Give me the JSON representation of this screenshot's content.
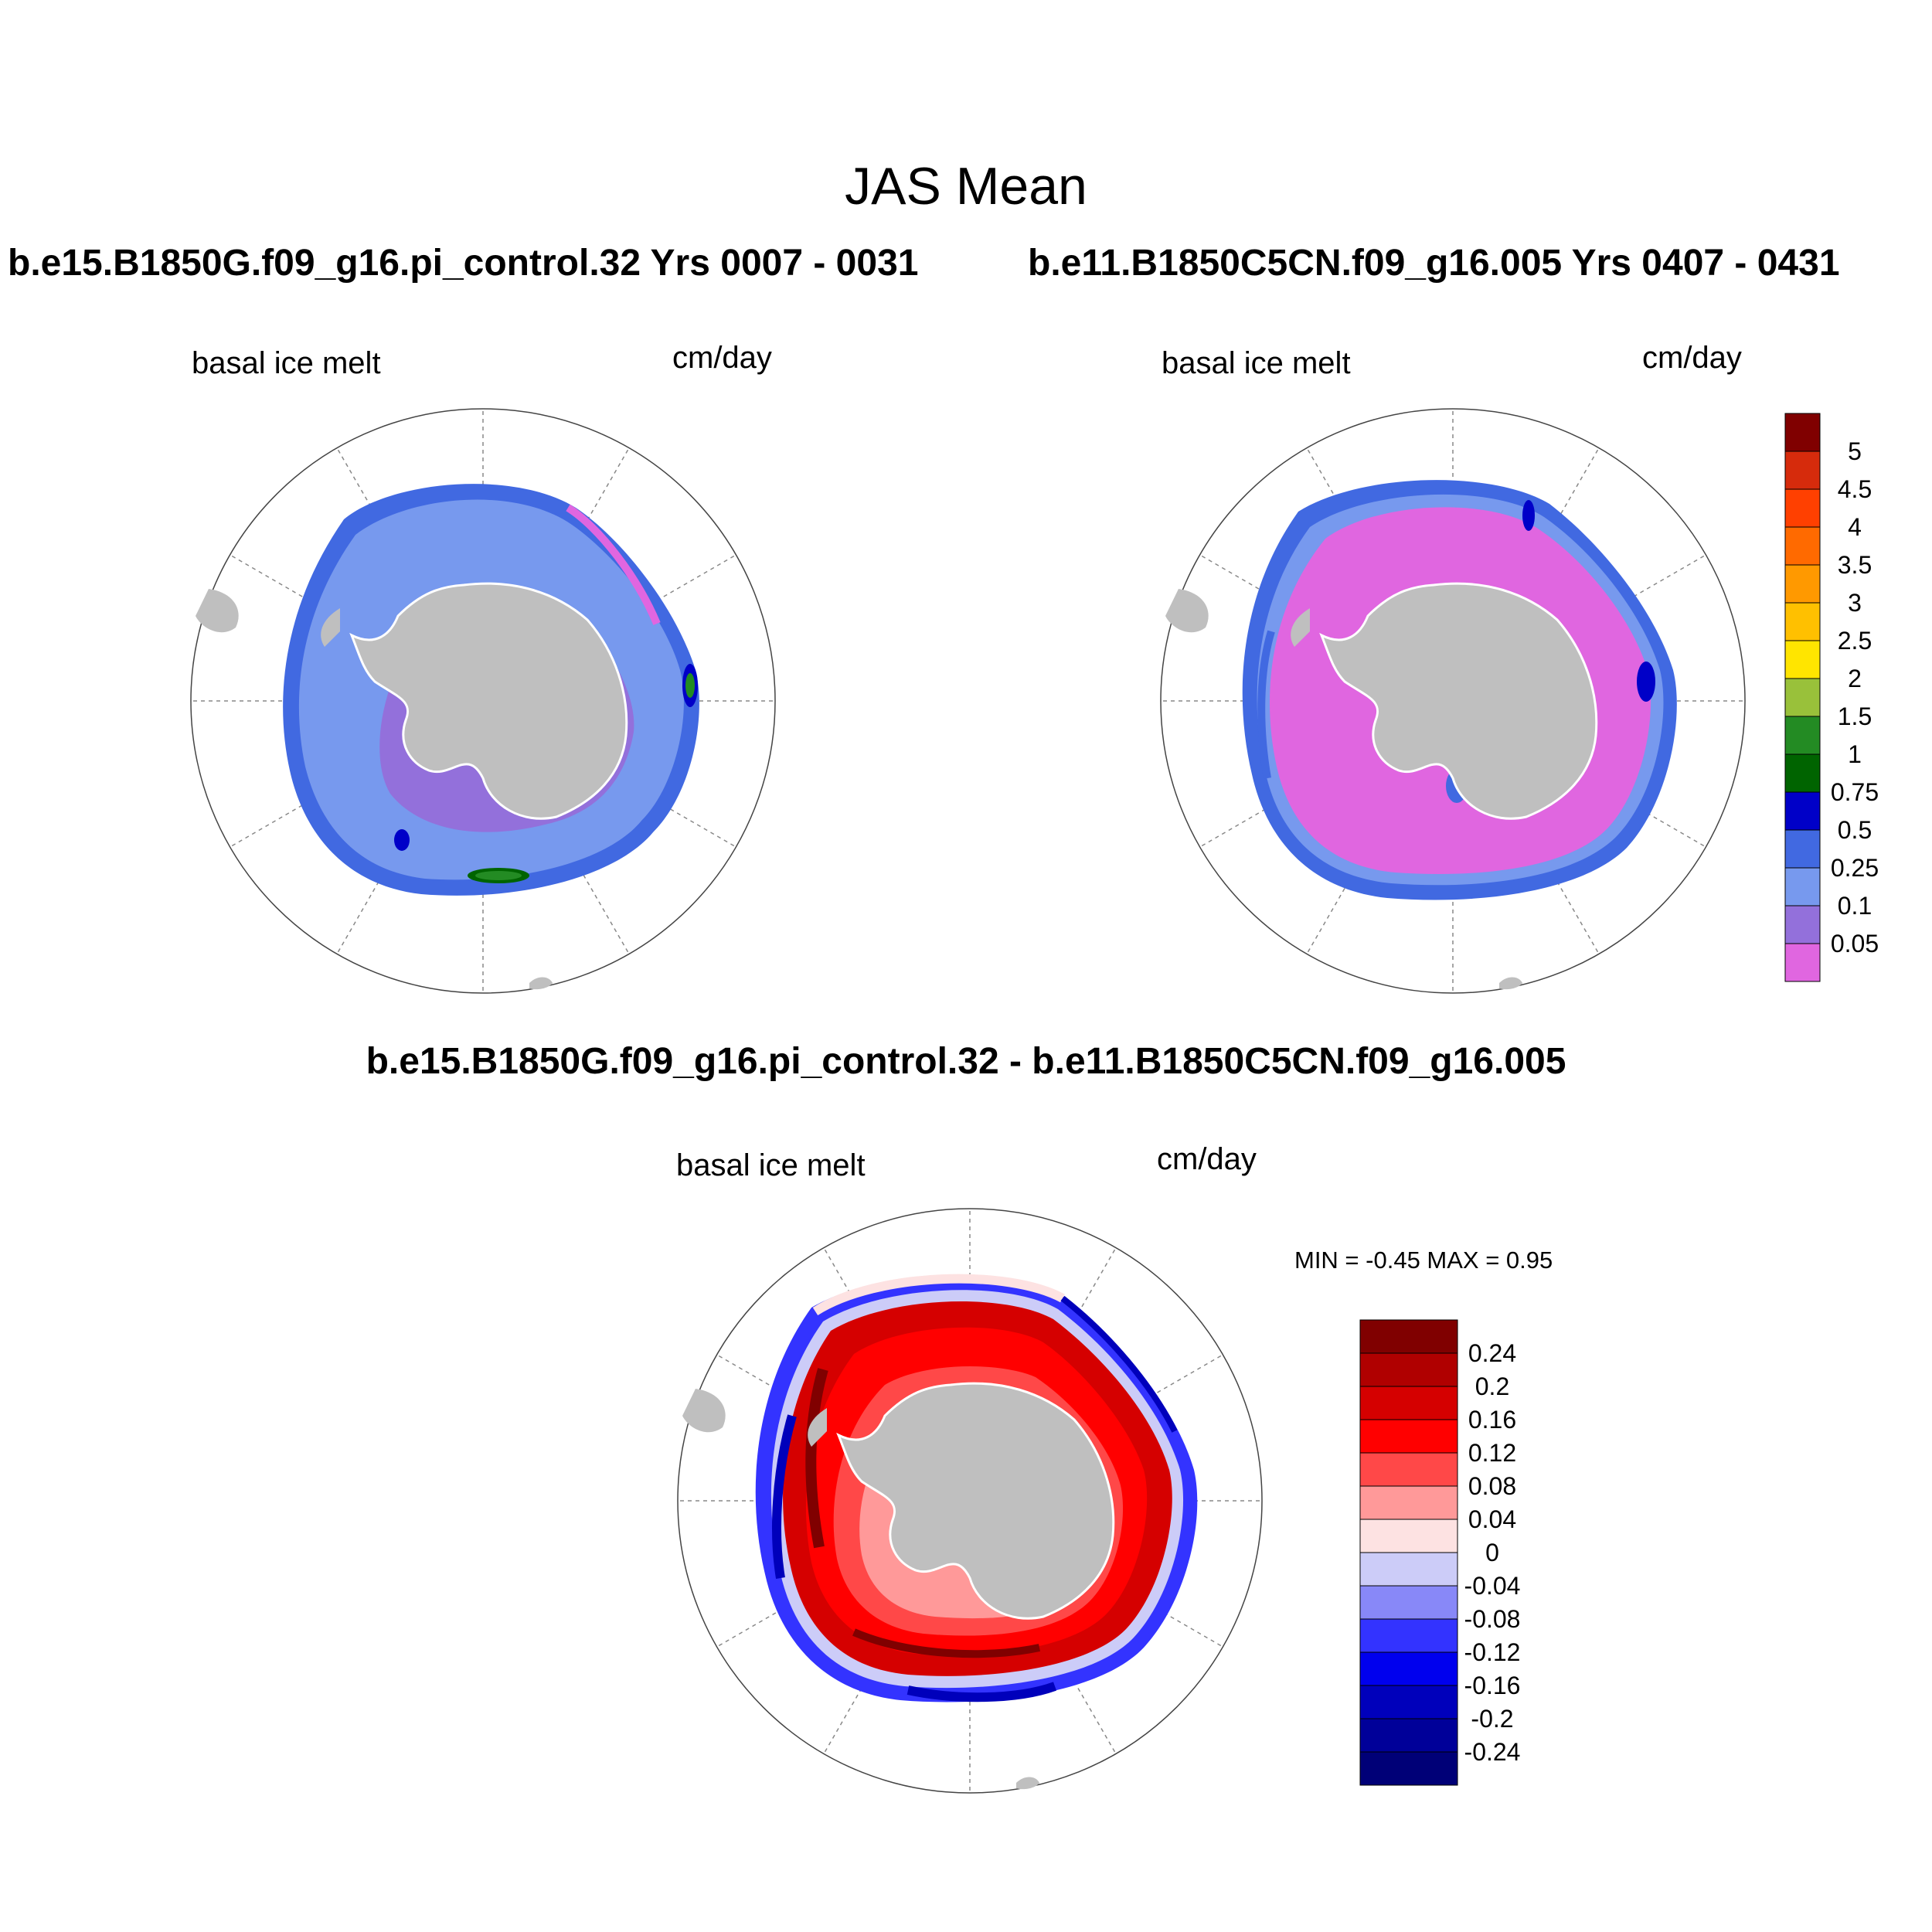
{
  "figure": {
    "title": "JAS Mean",
    "variable": "basal ice melt",
    "units": "cm/day"
  },
  "panels": {
    "case1": {
      "title": "b.e15.B1850G.f09_g16.pi_control.32  Yrs 0007 - 0031",
      "variable": "basal ice melt",
      "units": "cm/day"
    },
    "case2": {
      "title": "b.e11.B1850C5CN.f09_g16.005  Yrs 0407 - 0431",
      "variable": "basal ice melt",
      "units": "cm/day"
    },
    "diff": {
      "title": "b.e15.B1850G.f09_g16.pi_control.32 - b.e11.B1850C5CN.f09_g16.005",
      "variable": "basal ice melt",
      "units": "cm/day",
      "minmax": "MIN =  -0.45 MAX =   0.95"
    }
  },
  "colorbars": {
    "main": {
      "labels": [
        "5",
        "4.5",
        "4",
        "3.5",
        "3",
        "2.5",
        "2",
        "1.5",
        "1",
        "0.75",
        "0.5",
        "0.25",
        "0.1",
        "0.05"
      ],
      "colors": [
        "#800000",
        "#d62b0c",
        "#ff4000",
        "#ff6a00",
        "#ff9900",
        "#ffc000",
        "#ffe500",
        "#99c13a",
        "#238b23",
        "#006400",
        "#0000c8",
        "#4169e1",
        "#7799ee",
        "#9370db",
        "#e066e0"
      ]
    },
    "diff": {
      "labels": [
        "0.24",
        "0.2",
        "0.16",
        "0.12",
        "0.08",
        "0.04",
        "0",
        "-0.04",
        "-0.08",
        "-0.12",
        "-0.16",
        "-0.2",
        "-0.24"
      ],
      "colors": [
        "#800000",
        "#b00000",
        "#d50000",
        "#ff0000",
        "#ff4848",
        "#ff9999",
        "#fde2e2",
        "#ccccf8",
        "#8888f8",
        "#3333ff",
        "#0000ee",
        "#0000bb",
        "#000099",
        "#000077"
      ]
    }
  },
  "map_colors": {
    "land": "#bfbfbf",
    "grid": "#888888"
  }
}
